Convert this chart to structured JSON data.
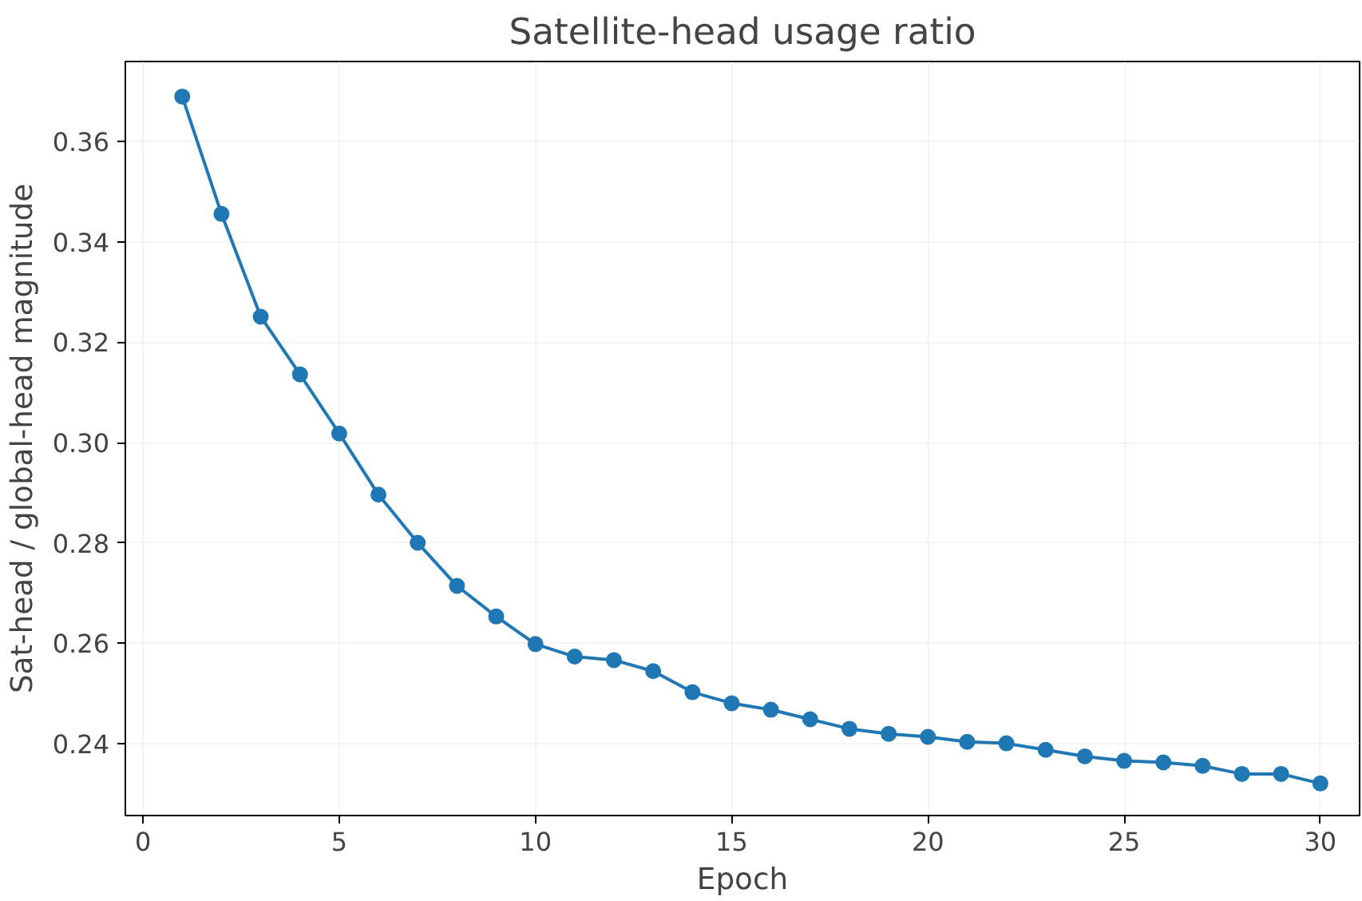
{
  "chart_data": {
    "type": "line",
    "title": "Satellite-head usage ratio",
    "xlabel": "Epoch",
    "ylabel": "Sat-head / global-head magnitude",
    "x": [
      1,
      2,
      3,
      4,
      5,
      6,
      7,
      8,
      9,
      10,
      11,
      12,
      13,
      14,
      15,
      16,
      17,
      18,
      19,
      20,
      21,
      22,
      23,
      24,
      25,
      26,
      27,
      28,
      29,
      30
    ],
    "series": [
      {
        "color": "#1f77b4",
        "values": [
          0.369,
          0.3456,
          0.3251,
          0.3136,
          0.3018,
          0.2896,
          0.28,
          0.2714,
          0.2653,
          0.2598,
          0.2573,
          0.2566,
          0.2544,
          0.2502,
          0.248,
          0.2467,
          0.2448,
          0.2429,
          0.2419,
          0.2413,
          0.2403,
          0.24,
          0.2387,
          0.2374,
          0.2365,
          0.2362,
          0.2355,
          0.2339,
          0.2339,
          0.232
        ]
      }
    ],
    "xlim": [
      -0.45,
      31.0
    ],
    "ylim": [
      0.2256,
      0.376
    ],
    "xticks": [
      0,
      5,
      10,
      15,
      20,
      25,
      30
    ],
    "yticks": [
      {
        "value": 0.24,
        "label": "0.24"
      },
      {
        "value": 0.26,
        "label": "0.26"
      },
      {
        "value": 0.28,
        "label": "0.28"
      },
      {
        "value": 0.3,
        "label": "0.30"
      },
      {
        "value": 0.32,
        "label": "0.32"
      },
      {
        "value": 0.34,
        "label": "0.34"
      },
      {
        "value": 0.36,
        "label": "0.36"
      }
    ],
    "grid": true,
    "marker": "circle",
    "line_style": "solid"
  }
}
